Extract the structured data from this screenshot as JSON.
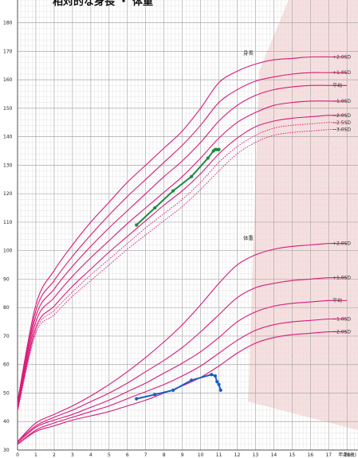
{
  "chart_data": {
    "type": "line",
    "title": "相対的な身長 ・ 体重",
    "xlabel": "年齢(歳)",
    "ylabel": "",
    "xlim": [
      0,
      18.6
    ],
    "ylim": [
      30,
      188
    ],
    "x_ticks": [
      0,
      1,
      2,
      3,
      4,
      5,
      6,
      7,
      8,
      9,
      10,
      11,
      12,
      13,
      14,
      15,
      16,
      17,
      18
    ],
    "y_ticks": [
      30,
      40,
      50,
      60,
      70,
      80,
      90,
      100,
      110,
      120,
      130,
      140,
      150,
      160,
      170,
      180
    ],
    "grid": true,
    "colors": {
      "reference_curve": "#d81b7a",
      "height_measurements": "#1e8a3e",
      "weight_measurements": "#1a5fc4",
      "grid_minor": "#dcdcdc",
      "grid_major": "#a8a8a8",
      "shade": "#f5d4d4"
    },
    "shaded_region": {
      "polygon": [
        [
          13.2,
          163
        ],
        [
          14.8,
          188
        ],
        [
          18.6,
          188
        ],
        [
          18.6,
          37
        ],
        [
          12.6,
          47
        ]
      ]
    },
    "height_reference": {
      "label": "身長",
      "x": [
        0,
        1,
        2,
        3,
        4,
        5,
        6,
        7,
        8,
        9,
        10,
        11,
        12,
        13,
        14,
        15,
        16,
        17,
        18
      ],
      "series": [
        {
          "name": "+2.0SD",
          "values": [
            47,
            81,
            93,
            102,
            110,
            117,
            124,
            130,
            136,
            142,
            150,
            159,
            163,
            165.5,
            167,
            167.5,
            168,
            168,
            168
          ]
        },
        {
          "name": "+1.0SD",
          "values": [
            46,
            79,
            89.5,
            98,
            105.5,
            112.5,
            119,
            125,
            131,
            137,
            144,
            152,
            156.5,
            159.5,
            161,
            162,
            162.5,
            162.5,
            162.5
          ]
        },
        {
          "name": "平均",
          "values": [
            46,
            77,
            86.5,
            94.5,
            101.5,
            108,
            114,
            120,
            126,
            131.5,
            138,
            145.5,
            151,
            154.5,
            156.5,
            157.5,
            158,
            158,
            158
          ]
        },
        {
          "name": "−1.0SD",
          "values": [
            45,
            75,
            83.5,
            91,
            97.5,
            103.5,
            109.5,
            115,
            120.5,
            126,
            132.5,
            139.5,
            145,
            148.5,
            151,
            152,
            152.5,
            152.5,
            152.5
          ]
        },
        {
          "name": "−2.0SD",
          "values": [
            44.5,
            73,
            80.5,
            87.5,
            93.5,
            99.5,
            105,
            110.5,
            116,
            121,
            127,
            134,
            139.5,
            143.5,
            145.5,
            146.5,
            147,
            147.5,
            147.5
          ]
        },
        {
          "name": "−2.5SD",
          "dashed": true,
          "values": [
            44,
            72,
            79,
            85.5,
            91.5,
            97,
            102.5,
            108,
            113,
            118,
            124,
            131,
            136.5,
            140.5,
            143,
            144,
            144.5,
            145,
            145
          ]
        },
        {
          "name": "−3.0SD",
          "dashed": true,
          "values": [
            43.5,
            71,
            77.5,
            84,
            89.5,
            95,
            100.5,
            105.5,
            110.5,
            115.5,
            121.5,
            128,
            134,
            138,
            140.5,
            141.5,
            142,
            142.5,
            142.5
          ]
        }
      ]
    },
    "weight_reference": {
      "label": "体重",
      "x": [
        0,
        1,
        2,
        3,
        4,
        5,
        6,
        7,
        8,
        9,
        10,
        11,
        12,
        13,
        14,
        15,
        16,
        17,
        18
      ],
      "series": [
        {
          "name": "+2.0SD",
          "values": [
            33,
            39.5,
            42.5,
            45.5,
            49,
            53,
            57.5,
            62.5,
            68,
            74,
            81,
            88.5,
            95,
            98.5,
            100.5,
            101.5,
            102,
            102.5,
            102.5
          ]
        },
        {
          "name": "+1.0SD",
          "values": [
            33,
            38.5,
            41.5,
            44,
            47,
            50,
            53.5,
            57.5,
            61.5,
            66,
            71.5,
            77.5,
            83.5,
            87,
            88.5,
            89.5,
            90,
            90.5,
            90.5
          ]
        },
        {
          "name": "平均",
          "values": [
            32.5,
            38,
            40.5,
            42.5,
            45,
            47.5,
            50.5,
            53.5,
            57,
            60.5,
            64.5,
            69.5,
            75,
            78.5,
            80.5,
            81.5,
            82,
            82.5,
            82.5
          ]
        },
        {
          "name": "−1.0SD",
          "values": [
            32,
            37,
            39.5,
            41.5,
            43.5,
            45.5,
            48,
            50.5,
            53,
            56,
            59.5,
            64,
            68.5,
            72,
            74,
            75,
            75.5,
            76,
            76
          ]
        },
        {
          "name": "−2.0SD",
          "values": [
            32,
            36.5,
            38.5,
            40.5,
            42,
            43.5,
            45.5,
            47.5,
            50,
            52.5,
            55.5,
            59.5,
            64,
            67.5,
            69.5,
            70.5,
            71,
            71.5,
            71.5
          ]
        }
      ]
    },
    "height_measurements": {
      "x": [
        6.5,
        7.5,
        8.5,
        9.5,
        10.4,
        10.7,
        10.8,
        10.9,
        11.0
      ],
      "values": [
        109,
        115,
        121,
        126,
        132.5,
        135,
        135.5,
        135.5,
        135.5
      ]
    },
    "weight_measurements": {
      "x": [
        6.5,
        7.5,
        8.5,
        9.5,
        10.6,
        10.8,
        10.9,
        11.0,
        11.1
      ],
      "values": [
        48,
        49.5,
        51,
        54.5,
        56.5,
        56,
        54,
        53,
        51
      ]
    }
  }
}
